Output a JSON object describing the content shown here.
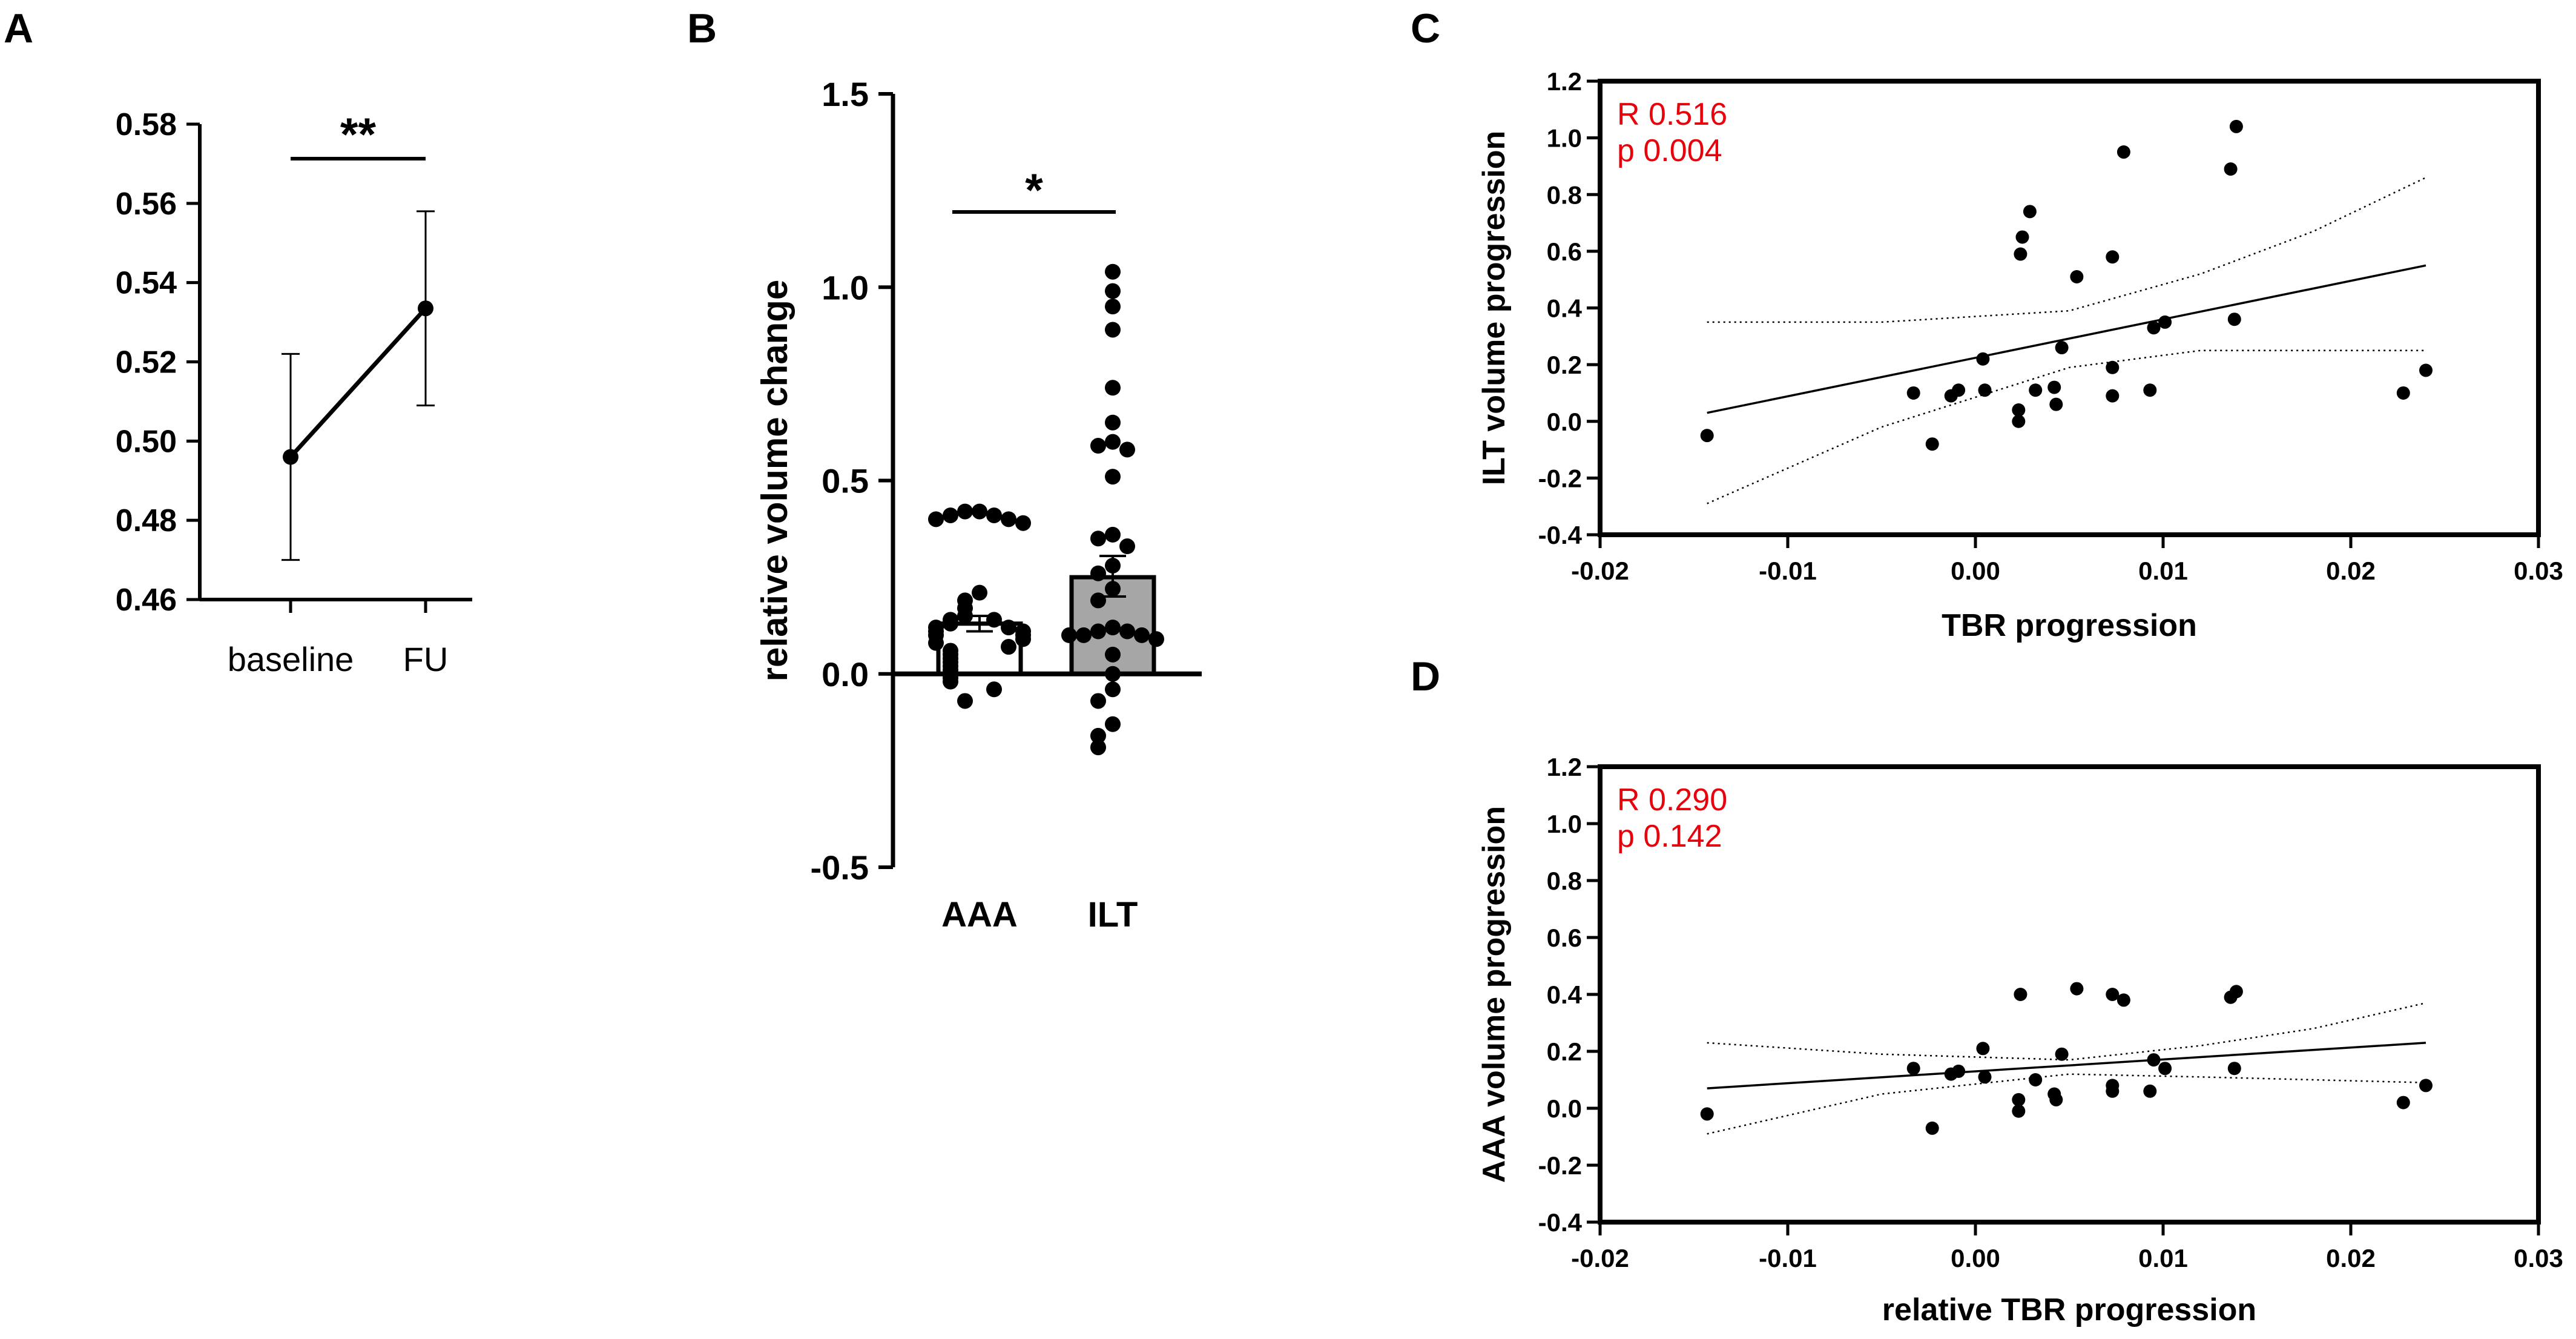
{
  "colors": {
    "ink": "#000000",
    "stats": "#e8000b",
    "bar_fill": "#a6a6a6"
  },
  "chart_data": [
    {
      "panel": "A",
      "type": "line",
      "categories": [
        "baseline",
        "FU"
      ],
      "values": [
        0.496,
        0.5335
      ],
      "error_low": [
        0.47,
        0.509
      ],
      "error_high": [
        0.522,
        0.558
      ],
      "ylim": [
        0.46,
        0.58
      ],
      "yticks": [
        "0.46",
        "0.48",
        "0.50",
        "0.52",
        "0.54",
        "0.56",
        "0.58"
      ],
      "xlabel": "",
      "ylabel": "",
      "significance": "**",
      "grid": false
    },
    {
      "panel": "B",
      "type": "bar",
      "categories": [
        "AAA",
        "ILT"
      ],
      "values": [
        0.13,
        0.25
      ],
      "error_low": [
        0.11,
        0.2
      ],
      "error_high": [
        0.15,
        0.305
      ],
      "ylim": [
        -0.5,
        1.5
      ],
      "yticks": [
        "-0.5",
        "0.0",
        "0.5",
        "1.0",
        "1.5"
      ],
      "ylabel": "relative volume change",
      "significance": "*",
      "points": {
        "AAA": [
          0.42,
          0.42,
          0.41,
          0.41,
          0.4,
          0.4,
          0.39,
          0.21,
          0.19,
          0.17,
          0.15,
          0.14,
          0.14,
          0.13,
          0.12,
          0.12,
          0.11,
          0.11,
          0.1,
          0.1,
          0.09,
          0.08,
          0.07,
          0.06,
          0.05,
          0.04,
          0.03,
          0.02,
          0.01,
          0.0,
          -0.01,
          -0.02,
          -0.04,
          -0.07
        ],
        "ILT": [
          1.04,
          0.99,
          0.95,
          0.89,
          0.74,
          0.65,
          0.6,
          0.59,
          0.58,
          0.51,
          0.36,
          0.35,
          0.33,
          0.28,
          0.26,
          0.22,
          0.19,
          0.12,
          0.11,
          0.11,
          0.1,
          0.1,
          0.1,
          0.09,
          0.05,
          0.0,
          -0.04,
          -0.07,
          -0.13,
          -0.16,
          -0.19
        ]
      },
      "grid": false
    },
    {
      "panel": "C",
      "type": "scatter",
      "xlabel": "TBR progression",
      "ylabel": "ILT volume progression",
      "xlim": [
        -0.02,
        0.03
      ],
      "ylim": [
        -0.4,
        1.2
      ],
      "xticks": [
        "-0.02",
        "-0.01",
        "0.00",
        "0.01",
        "0.02",
        "0.03"
      ],
      "yticks": [
        "-0.4",
        "-0.2",
        "0.0",
        "0.2",
        "0.4",
        "0.6",
        "0.8",
        "1.0",
        "1.2"
      ],
      "annotation": [
        "R 0.516",
        "p 0.004"
      ],
      "points": [
        [
          -0.0143,
          -0.05
        ],
        [
          -0.0033,
          0.1
        ],
        [
          -0.0023,
          -0.08
        ],
        [
          -0.0013,
          0.09
        ],
        [
          -0.0009,
          0.11
        ],
        [
          0.0004,
          0.22
        ],
        [
          0.0005,
          0.11
        ],
        [
          0.0023,
          0.04
        ],
        [
          0.0023,
          0.0
        ],
        [
          0.0024,
          0.59
        ],
        [
          0.0025,
          0.65
        ],
        [
          0.0029,
          0.74
        ],
        [
          0.0032,
          0.11
        ],
        [
          0.0042,
          0.12
        ],
        [
          0.0043,
          0.06
        ],
        [
          0.0046,
          0.26
        ],
        [
          0.0054,
          0.51
        ],
        [
          0.0073,
          0.58
        ],
        [
          0.0073,
          0.19
        ],
        [
          0.0073,
          0.09
        ],
        [
          0.0079,
          0.95
        ],
        [
          0.0093,
          0.11
        ],
        [
          0.0095,
          0.33
        ],
        [
          0.0101,
          0.35
        ],
        [
          0.0136,
          0.89
        ],
        [
          0.0138,
          0.36
        ],
        [
          0.0139,
          1.04
        ],
        [
          0.0228,
          0.1
        ],
        [
          0.024,
          0.18
        ]
      ],
      "fit": {
        "x": [
          -0.0143,
          0.024
        ],
        "y": [
          0.03,
          0.55
        ]
      },
      "ci_upper": {
        "x": [
          -0.0143,
          -0.005,
          0.005,
          0.012,
          0.018,
          0.024
        ],
        "y": [
          0.35,
          0.35,
          0.39,
          0.52,
          0.67,
          0.86
        ]
      },
      "ci_lower": {
        "x": [
          -0.0143,
          -0.005,
          0.005,
          0.012,
          0.018,
          0.024
        ],
        "y": [
          -0.29,
          -0.02,
          0.19,
          0.25,
          0.25,
          0.25
        ]
      },
      "grid": false
    },
    {
      "panel": "D",
      "type": "scatter",
      "xlabel": "relative TBR progression",
      "ylabel": "AAA volume progression",
      "xlim": [
        -0.02,
        0.03
      ],
      "ylim": [
        -0.4,
        1.2
      ],
      "xticks": [
        "-0.02",
        "-0.01",
        "0.00",
        "0.01",
        "0.02",
        "0.03"
      ],
      "yticks": [
        "-0.4",
        "-0.2",
        "0.0",
        "0.2",
        "0.4",
        "0.6",
        "0.8",
        "1.0",
        "1.2"
      ],
      "annotation": [
        "R 0.290",
        "p 0.142"
      ],
      "points": [
        [
          -0.0143,
          -0.02
        ],
        [
          -0.0033,
          0.14
        ],
        [
          -0.0023,
          -0.07
        ],
        [
          -0.0013,
          0.12
        ],
        [
          -0.0009,
          0.13
        ],
        [
          0.0004,
          0.21
        ],
        [
          0.0005,
          0.11
        ],
        [
          0.0023,
          0.03
        ],
        [
          0.0023,
          -0.01
        ],
        [
          0.0024,
          0.4
        ],
        [
          0.0032,
          0.1
        ],
        [
          0.0042,
          0.05
        ],
        [
          0.0043,
          0.03
        ],
        [
          0.0046,
          0.19
        ],
        [
          0.0054,
          0.42
        ],
        [
          0.0073,
          0.4
        ],
        [
          0.0073,
          0.08
        ],
        [
          0.0073,
          0.06
        ],
        [
          0.0079,
          0.38
        ],
        [
          0.0093,
          0.06
        ],
        [
          0.0095,
          0.17
        ],
        [
          0.0101,
          0.14
        ],
        [
          0.0136,
          0.39
        ],
        [
          0.0138,
          0.14
        ],
        [
          0.0139,
          0.41
        ],
        [
          0.0228,
          0.02
        ],
        [
          0.024,
          0.08
        ]
      ],
      "fit": {
        "x": [
          -0.0143,
          0.024
        ],
        "y": [
          0.07,
          0.23
        ]
      },
      "ci_upper": {
        "x": [
          -0.0143,
          -0.005,
          0.005,
          0.012,
          0.018,
          0.024
        ],
        "y": [
          0.23,
          0.19,
          0.17,
          0.22,
          0.28,
          0.37
        ]
      },
      "ci_lower": {
        "x": [
          -0.0143,
          -0.005,
          0.005,
          0.012,
          0.018,
          0.024
        ],
        "y": [
          -0.09,
          0.05,
          0.12,
          0.11,
          0.1,
          0.09
        ]
      },
      "grid": false
    }
  ]
}
